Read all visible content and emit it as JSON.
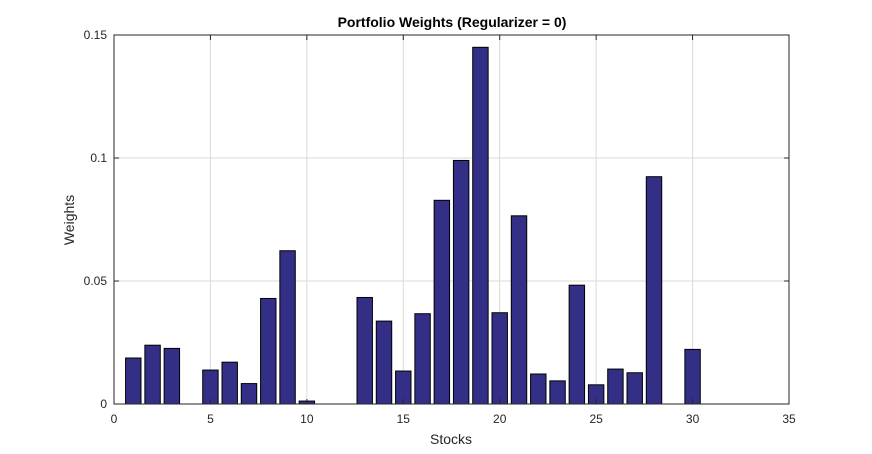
{
  "chart_data": {
    "type": "bar",
    "title": "Portfolio Weights (Regularizer = 0)",
    "xlabel": "Stocks",
    "ylabel": "Weights",
    "xlim": [
      0,
      35
    ],
    "ylim": [
      0,
      0.15
    ],
    "xticks": [
      0,
      5,
      10,
      15,
      20,
      25,
      30,
      35
    ],
    "xtick_labels": [
      "0",
      "5",
      "10",
      "15",
      "20",
      "25",
      "30",
      "35"
    ],
    "yticks": [
      0,
      0.05,
      0.1,
      0.15
    ],
    "ytick_labels": [
      "0",
      "0.05",
      "0.1",
      "0.15"
    ],
    "grid": true,
    "bar_color": "#342f86",
    "bar_width": 0.8,
    "x": [
      1,
      2,
      3,
      4,
      5,
      6,
      7,
      8,
      9,
      10,
      11,
      12,
      13,
      14,
      15,
      16,
      17,
      18,
      19,
      20,
      21,
      22,
      23,
      24,
      25,
      26,
      27,
      28,
      29,
      30
    ],
    "values": [
      0.0187,
      0.0239,
      0.0226,
      0,
      0.0138,
      0.017,
      0.0083,
      0.0429,
      0.0623,
      0.0012,
      0,
      0,
      0.0433,
      0.0337,
      0.0134,
      0.0367,
      0.0828,
      0.099,
      0.145,
      0.0371,
      0.0765,
      0.0122,
      0.0094,
      0.0483,
      0.0078,
      0.0142,
      0.0127,
      0.0924,
      0,
      0.0222
    ]
  }
}
